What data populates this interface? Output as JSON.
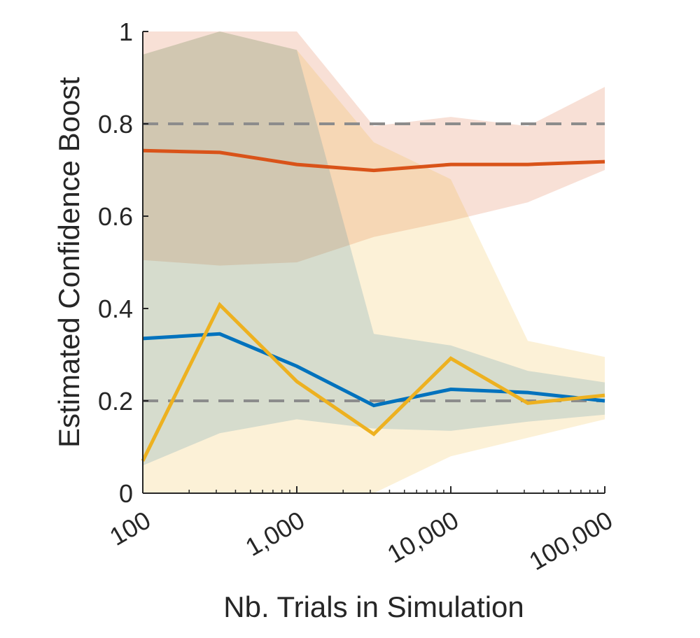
{
  "chart_data": {
    "type": "line",
    "xlabel": "Nb. Trials in Simulation",
    "ylabel": "Estimated Confidence Boost",
    "x_scale": "log",
    "xlim": [
      100,
      100000
    ],
    "ylim": [
      0,
      1
    ],
    "x_ticks": [
      100,
      1000,
      10000,
      100000
    ],
    "x_tick_labels": [
      "100",
      "1,000",
      "10,000",
      "100,000"
    ],
    "y_ticks": [
      0,
      0.2,
      0.4,
      0.6,
      0.8,
      1
    ],
    "y_tick_labels": [
      "0",
      "0.2",
      "0.4",
      "0.6",
      "0.8",
      "1"
    ],
    "grid": false,
    "x": [
      100,
      316,
      1000,
      3162,
      10000,
      31623,
      100000
    ],
    "reference_lines": [
      0.2,
      0.8
    ],
    "reference_color": "#8c8c8c",
    "series": [
      {
        "color": "#d95319",
        "values": [
          0.742,
          0.738,
          0.712,
          0.699,
          0.712,
          0.712,
          0.718
        ],
        "band_lower": [
          0.505,
          0.493,
          0.5,
          0.555,
          0.59,
          0.63,
          0.7
        ],
        "band_upper": [
          1.0,
          1.0,
          1.0,
          0.795,
          0.815,
          0.795,
          0.88
        ]
      },
      {
        "color": "#0072bd",
        "values": [
          0.335,
          0.345,
          0.275,
          0.19,
          0.225,
          0.218,
          0.2
        ],
        "band_lower": [
          0.06,
          0.13,
          0.16,
          0.14,
          0.135,
          0.155,
          0.17
        ],
        "band_upper": [
          0.95,
          1.0,
          0.96,
          0.345,
          0.32,
          0.265,
          0.24
        ]
      },
      {
        "color": "#edb120",
        "values": [
          0.07,
          0.408,
          0.242,
          0.128,
          0.292,
          0.195,
          0.212
        ],
        "band_lower": [
          0.0,
          0.0,
          0.0,
          0.0,
          0.08,
          0.12,
          0.16
        ],
        "band_upper": [
          0.95,
          1.0,
          0.96,
          0.76,
          0.68,
          0.33,
          0.295
        ]
      }
    ]
  }
}
